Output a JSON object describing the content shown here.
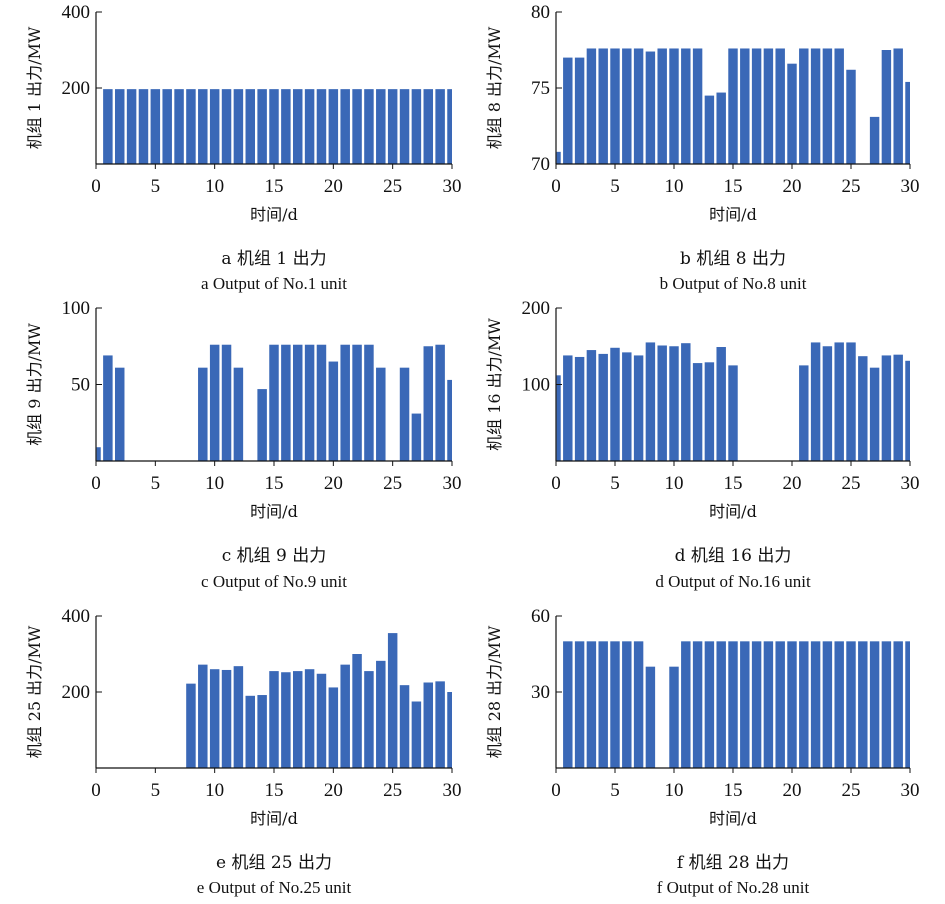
{
  "chart_data": [
    {
      "type": "bar",
      "caption_cn": "a  机组 1 出力",
      "caption_en": "a  Output of No.1 unit",
      "xlabel": "时间/d",
      "ylabel": "机组 1 出力/MW",
      "xlim": [
        0,
        30
      ],
      "ylim": [
        0,
        400
      ],
      "xticks": [
        0,
        5,
        10,
        15,
        20,
        25,
        30
      ],
      "yticks": [
        200,
        400
      ],
      "x": [
        1,
        2,
        3,
        4,
        5,
        6,
        7,
        8,
        9,
        10,
        11,
        12,
        13,
        14,
        15,
        16,
        17,
        18,
        19,
        20,
        21,
        22,
        23,
        24,
        25,
        26,
        27,
        28,
        29,
        30
      ],
      "values": [
        197,
        197,
        197,
        197,
        197,
        197,
        197,
        197,
        197,
        197,
        197,
        197,
        197,
        197,
        197,
        197,
        197,
        197,
        197,
        197,
        197,
        197,
        197,
        197,
        197,
        197,
        197,
        197,
        197,
        197
      ]
    },
    {
      "type": "bar",
      "caption_cn": "b  机组 8 出力",
      "caption_en": "b  Output of No.8 unit",
      "xlabel": "时间/d",
      "ylabel": "机组 8 出力/MW",
      "xlim": [
        0,
        30
      ],
      "ylim": [
        70,
        80
      ],
      "xticks": [
        0,
        5,
        10,
        15,
        20,
        25,
        30
      ],
      "yticks": [
        70,
        75,
        80
      ],
      "x": [
        0,
        1,
        2,
        3,
        4,
        5,
        6,
        7,
        8,
        9,
        10,
        11,
        12,
        13,
        14,
        15,
        16,
        17,
        18,
        19,
        20,
        21,
        22,
        23,
        24,
        25,
        26,
        27,
        28,
        29,
        30
      ],
      "values": [
        70.8,
        77,
        77,
        77.6,
        77.6,
        77.6,
        77.6,
        77.6,
        77.4,
        77.6,
        77.6,
        77.6,
        77.6,
        74.5,
        74.7,
        77.6,
        77.6,
        77.6,
        77.6,
        77.6,
        76.6,
        77.6,
        77.6,
        77.6,
        77.6,
        76.2,
        null,
        73.1,
        77.5,
        77.6,
        75.4
      ]
    },
    {
      "type": "bar",
      "caption_cn": "c  机组 9 出力",
      "caption_en": "c  Output of No.9 unit",
      "xlabel": "时间/d",
      "ylabel": "机组 9 出力/MW",
      "xlim": [
        0,
        30
      ],
      "ylim": [
        0,
        100
      ],
      "xticks": [
        0,
        5,
        10,
        15,
        20,
        25,
        30
      ],
      "yticks": [
        50,
        100
      ],
      "x": [
        0,
        1,
        2,
        3,
        4,
        5,
        6,
        7,
        8,
        9,
        10,
        11,
        12,
        13,
        14,
        15,
        16,
        17,
        18,
        19,
        20,
        21,
        22,
        23,
        24,
        25,
        26,
        27,
        28,
        29,
        30
      ],
      "values": [
        9,
        69,
        61,
        null,
        null,
        null,
        null,
        null,
        null,
        61,
        76,
        76,
        61,
        null,
        47,
        76,
        76,
        76,
        76,
        76,
        65,
        76,
        76,
        76,
        61,
        null,
        61,
        31,
        75,
        76,
        53
      ]
    },
    {
      "type": "bar",
      "caption_cn": "d  机组 16 出力",
      "caption_en": "d  Output of No.16 unit",
      "xlabel": "时间/d",
      "ylabel": "机组 16 出力/MW",
      "xlim": [
        0,
        30
      ],
      "ylim": [
        0,
        200
      ],
      "xticks": [
        0,
        5,
        10,
        15,
        20,
        25,
        30
      ],
      "yticks": [
        100,
        200
      ],
      "x": [
        0,
        1,
        2,
        3,
        4,
        5,
        6,
        7,
        8,
        9,
        10,
        11,
        12,
        13,
        14,
        15,
        16,
        17,
        18,
        19,
        20,
        21,
        22,
        23,
        24,
        25,
        26,
        27,
        28,
        29,
        30
      ],
      "values": [
        112,
        138,
        136,
        145,
        140,
        148,
        142,
        138,
        155,
        151,
        150,
        154,
        128,
        129,
        149,
        125,
        null,
        null,
        null,
        null,
        null,
        125,
        155,
        150,
        155,
        155,
        137,
        122,
        138,
        139,
        131
      ]
    },
    {
      "type": "bar",
      "caption_cn": "e  机组 25 出力",
      "caption_en": "e  Output of No.25 unit",
      "xlabel": "时间/d",
      "ylabel": "机组 25 出力/MW",
      "xlim": [
        0,
        30
      ],
      "ylim": [
        0,
        400
      ],
      "xticks": [
        0,
        5,
        10,
        15,
        20,
        25,
        30
      ],
      "yticks": [
        200,
        400
      ],
      "x": [
        0,
        1,
        2,
        3,
        4,
        5,
        6,
        7,
        8,
        9,
        10,
        11,
        12,
        13,
        14,
        15,
        16,
        17,
        18,
        19,
        20,
        21,
        22,
        23,
        24,
        25,
        26,
        27,
        28,
        29,
        30
      ],
      "values": [
        null,
        null,
        null,
        null,
        null,
        null,
        null,
        null,
        222,
        272,
        260,
        258,
        268,
        190,
        192,
        255,
        252,
        255,
        260,
        248,
        212,
        272,
        300,
        255,
        282,
        355,
        218,
        175,
        225,
        228,
        200
      ]
    },
    {
      "type": "bar",
      "caption_cn": "f  机组 28 出力",
      "caption_en": "f  Output of No.28 unit",
      "xlabel": "时间/d",
      "ylabel": "机组 28 出力/MW",
      "xlim": [
        0,
        30
      ],
      "ylim": [
        0,
        60
      ],
      "xticks": [
        0,
        5,
        10,
        15,
        20,
        25,
        30
      ],
      "yticks": [
        30,
        60
      ],
      "x": [
        0,
        1,
        2,
        3,
        4,
        5,
        6,
        7,
        8,
        9,
        10,
        11,
        12,
        13,
        14,
        15,
        16,
        17,
        18,
        19,
        20,
        21,
        22,
        23,
        24,
        25,
        26,
        27,
        28,
        29,
        30
      ],
      "values": [
        null,
        50,
        50,
        50,
        50,
        50,
        50,
        50,
        40,
        null,
        40,
        50,
        50,
        50,
        50,
        50,
        50,
        50,
        50,
        50,
        50,
        50,
        50,
        50,
        50,
        50,
        50,
        50,
        50,
        50,
        50
      ]
    }
  ],
  "colors": {
    "bar": "#3a68b7",
    "axis": "#111111"
  }
}
